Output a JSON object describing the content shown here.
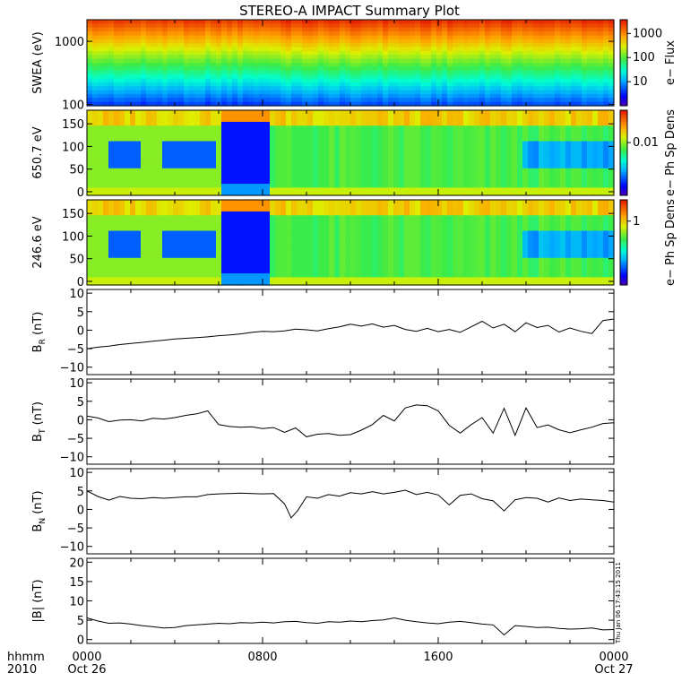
{
  "title": "STEREO-A IMPACT Summary Plot",
  "time_axis": {
    "corner_labels": [
      "hhmm",
      "2010"
    ],
    "ticks": [
      {
        "label": "0000",
        "sublabel": "Oct 26",
        "hour": 0
      },
      {
        "label": "0800",
        "sublabel": "",
        "hour": 8
      },
      {
        "label": "1600",
        "sublabel": "",
        "hour": 16
      },
      {
        "label": "0000",
        "sublabel": "Oct 27",
        "hour": 24
      }
    ],
    "range_hours": [
      0,
      24
    ]
  },
  "timestamp_stamp": "Thu Jan 06 17:43:15 2011",
  "chart_data": [
    {
      "type": "heatmap",
      "name": "swea",
      "ylabel": "SWEA (eV)",
      "yscale": "log",
      "ylim": [
        95,
        2200
      ],
      "y_ticks": [
        {
          "v": 100,
          "label": "100"
        },
        {
          "v": 1000,
          "label": "1000"
        }
      ],
      "colorbar_label": "e− Flux",
      "colorbar_ticks": [
        {
          "frac": 0.28,
          "label": "10"
        },
        {
          "frac": 0.56,
          "label": "100"
        },
        {
          "frac": 0.84,
          "label": "1000"
        }
      ]
    },
    {
      "type": "heatmap",
      "name": "pad650",
      "ylabel": "650.7 eV",
      "ylim": [
        -8,
        180
      ],
      "y_ticks": [
        {
          "v": 0,
          "label": "0"
        },
        {
          "v": 50,
          "label": "50"
        },
        {
          "v": 100,
          "label": "100"
        },
        {
          "v": 150,
          "label": "150"
        }
      ],
      "colorbar_label": "e− Ph Sp Dens",
      "colorbar_ticks": [
        {
          "frac": 0.62,
          "label": "0.01"
        }
      ]
    },
    {
      "type": "heatmap",
      "name": "pad246",
      "ylabel": "246.6 eV",
      "ylim": [
        -8,
        180
      ],
      "y_ticks": [
        {
          "v": 0,
          "label": "0"
        },
        {
          "v": 50,
          "label": "50"
        },
        {
          "v": 100,
          "label": "100"
        },
        {
          "v": 150,
          "label": "150"
        }
      ],
      "colorbar_label": "e− Ph Sp Dens",
      "colorbar_ticks": [
        {
          "frac": 0.75,
          "label": "1"
        }
      ]
    },
    {
      "type": "line",
      "name": "BR",
      "ylabel": "B",
      "ylabel_sub": "R",
      "ylabel_unit": " (nT)",
      "ylim": [
        -12,
        11
      ],
      "y_ticks": [
        {
          "v": -10,
          "label": "−10"
        },
        {
          "v": -5,
          "label": "−5"
        },
        {
          "v": 0,
          "label": "0"
        },
        {
          "v": 5,
          "label": "5"
        },
        {
          "v": 10,
          "label": "10"
        }
      ],
      "x": [
        0,
        0.5,
        1,
        1.5,
        2,
        2.5,
        3,
        3.5,
        4,
        4.5,
        5,
        5.5,
        6,
        6.5,
        7,
        7.5,
        8,
        8.5,
        9,
        9.5,
        10,
        10.5,
        11,
        11.5,
        12,
        12.5,
        13,
        13.5,
        14,
        14.5,
        15,
        15.5,
        16,
        16.5,
        17,
        17.5,
        18,
        18.5,
        19,
        19.5,
        20,
        20.5,
        21,
        21.5,
        22,
        22.5,
        23,
        23.5,
        24
      ],
      "y": [
        -5,
        -4.6,
        -4.3,
        -3.9,
        -3.6,
        -3.3,
        -3.0,
        -2.7,
        -2.4,
        -2.2,
        -2.0,
        -1.8,
        -1.5,
        -1.3,
        -1.0,
        -0.6,
        -0.3,
        -0.4,
        -0.2,
        0.3,
        0.1,
        -0.2,
        0.4,
        0.9,
        1.6,
        1.1,
        1.7,
        0.8,
        1.3,
        0.2,
        -0.3,
        0.5,
        -0.4,
        0.2,
        -0.6,
        0.9,
        2.4,
        0.6,
        1.6,
        -0.4,
        2.0,
        0.7,
        1.3,
        -0.5,
        0.6,
        -0.3,
        -0.9,
        2.6,
        3.0
      ]
    },
    {
      "type": "line",
      "name": "BT",
      "ylabel": "B",
      "ylabel_sub": "T",
      "ylabel_unit": " (nT)",
      "ylim": [
        -12,
        11
      ],
      "y_ticks": [
        {
          "v": -10,
          "label": "−10"
        },
        {
          "v": -5,
          "label": "−5"
        },
        {
          "v": 0,
          "label": "0"
        },
        {
          "v": 5,
          "label": "5"
        },
        {
          "v": 10,
          "label": "10"
        }
      ],
      "x": [
        0,
        0.5,
        1,
        1.5,
        2,
        2.5,
        3,
        3.5,
        4,
        4.5,
        5,
        5.5,
        6,
        6.5,
        7,
        7.5,
        8,
        8.5,
        9,
        9.5,
        10,
        10.5,
        11,
        11.5,
        12,
        12.5,
        13,
        13.5,
        14,
        14.5,
        15,
        15.5,
        16,
        16.5,
        17,
        17.5,
        18,
        18.5,
        19,
        19.5,
        20,
        20.5,
        21,
        21.5,
        22,
        22.5,
        23,
        23.5,
        24
      ],
      "y": [
        1.0,
        0.5,
        -0.5,
        -0.1,
        0,
        -0.3,
        0.4,
        0.2,
        0.6,
        1.2,
        1.6,
        2.4,
        -1.3,
        -1.8,
        -2.0,
        -1.9,
        -2.4,
        -2.1,
        -3.4,
        -2.2,
        -4.6,
        -3.9,
        -3.7,
        -4.2,
        -4.0,
        -2.8,
        -1.3,
        1.2,
        -0.3,
        3.2,
        4.0,
        3.8,
        2.4,
        -1.5,
        -3.6,
        -1.3,
        0.6,
        -3.6,
        3.1,
        -4.2,
        3.2,
        -2.1,
        -1.4,
        -2.7,
        -3.5,
        -2.7,
        -2.0,
        -1.0,
        -0.8
      ]
    },
    {
      "type": "line",
      "name": "BN",
      "ylabel": "B",
      "ylabel_sub": "N",
      "ylabel_unit": " (nT)",
      "ylim": [
        -12,
        11
      ],
      "y_ticks": [
        {
          "v": -10,
          "label": "−10"
        },
        {
          "v": -5,
          "label": "−5"
        },
        {
          "v": 0,
          "label": "0"
        },
        {
          "v": 5,
          "label": "5"
        },
        {
          "v": 10,
          "label": "10"
        }
      ],
      "x": [
        0,
        0.5,
        1,
        1.5,
        2,
        2.5,
        3,
        3.5,
        4,
        4.5,
        5,
        5.5,
        6,
        6.5,
        7,
        7.5,
        8,
        8.5,
        9,
        9.3,
        9.6,
        10,
        10.5,
        11,
        11.5,
        12,
        12.5,
        13,
        13.5,
        14,
        14.5,
        15,
        15.5,
        16,
        16.5,
        17,
        17.5,
        18,
        18.5,
        19,
        19.5,
        20,
        20.5,
        21,
        21.5,
        22,
        22.5,
        23,
        23.5,
        24
      ],
      "y": [
        5,
        3.5,
        2.5,
        3.5,
        3.0,
        2.9,
        3.2,
        3.0,
        3.2,
        3.4,
        3.4,
        4.0,
        4.2,
        4.3,
        4.4,
        4.3,
        4.2,
        4.3,
        1.5,
        -2.3,
        -0.3,
        3.4,
        3.0,
        4.0,
        3.6,
        4.5,
        4.2,
        4.8,
        4.2,
        4.6,
        5.2,
        4.0,
        4.6,
        3.9,
        1.2,
        3.8,
        4.2,
        2.9,
        2.3,
        -0.4,
        2.6,
        3.2,
        3.0,
        2.0,
        3.1,
        2.4,
        2.8,
        2.6,
        2.4,
        2.0
      ]
    },
    {
      "type": "line",
      "name": "Bmag",
      "ylabel": "|B| (nT)",
      "ylim": [
        -1,
        21
      ],
      "y_ticks": [
        {
          "v": 0,
          "label": "0"
        },
        {
          "v": 5,
          "label": "5"
        },
        {
          "v": 10,
          "label": "10"
        },
        {
          "v": 15,
          "label": "15"
        },
        {
          "v": 20,
          "label": "20"
        }
      ],
      "x": [
        0,
        0.5,
        1,
        1.5,
        2,
        2.5,
        3,
        3.5,
        4,
        4.5,
        5,
        5.5,
        6,
        6.5,
        7,
        7.5,
        8,
        8.5,
        9,
        9.5,
        10,
        10.5,
        11,
        11.5,
        12,
        12.5,
        13,
        13.5,
        14,
        14.5,
        15,
        15.5,
        16,
        16.5,
        17,
        17.5,
        18,
        18.5,
        19,
        19.5,
        20,
        20.5,
        21,
        21.5,
        22,
        22.5,
        23,
        23.5,
        24
      ],
      "y": [
        5.6,
        4.8,
        4.2,
        4.3,
        4.0,
        3.6,
        3.3,
        3.0,
        3.1,
        3.6,
        3.8,
        4.0,
        4.2,
        4.1,
        4.4,
        4.3,
        4.5,
        4.3,
        4.6,
        4.7,
        4.4,
        4.2,
        4.6,
        4.5,
        4.8,
        4.6,
        4.9,
        5.1,
        5.6,
        5.0,
        4.6,
        4.3,
        4.1,
        4.5,
        4.7,
        4.4,
        4.0,
        3.8,
        1.2,
        3.6,
        3.4,
        3.1,
        3.2,
        2.9,
        2.7,
        2.8,
        3.0,
        2.5,
        2.6
      ]
    }
  ]
}
